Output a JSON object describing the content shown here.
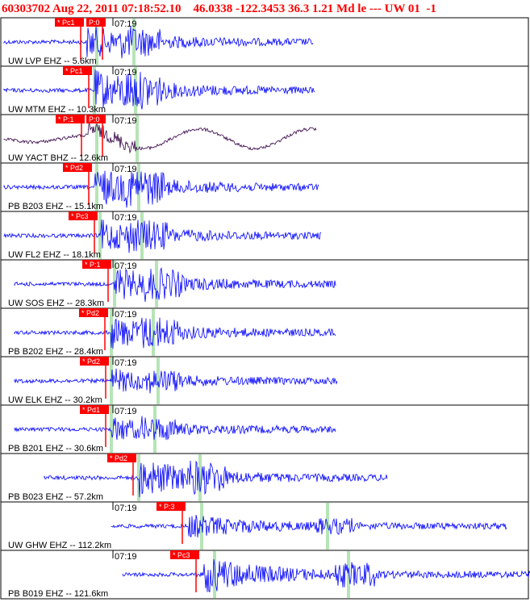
{
  "header": {
    "event_id": "60303702",
    "datetime": "Aug 22, 2011 07:18:52.10",
    "latitude": "46.0338",
    "longitude": "-122.3453",
    "depth": "36.3",
    "magnitude": "1.21",
    "mag_type": "Md",
    "type": "le",
    "separator": "---",
    "network": "UW",
    "version": "01",
    "flag": "-1"
  },
  "colors": {
    "waveform": "#0000ff",
    "broadband_waveform": "#330044",
    "pick": "#ff0000",
    "marker": "#b6e4b6",
    "panel_border": "#000000",
    "header_text": "#ff0000"
  },
  "chart_data": {
    "type": "line",
    "time_label": "07:19",
    "channels": [
      {
        "label": "UW LVP EHZ -- 5.6km",
        "picks": [
          "* Pc1",
          "P:0"
        ],
        "time_label": "07:19",
        "amplitude": "medium",
        "color": "#0000ff"
      },
      {
        "label": "UW MTM EHZ -- 10.3km",
        "picks": [
          "* Pc1"
        ],
        "time_label": "07:19",
        "amplitude": "high",
        "color": "#0000ff"
      },
      {
        "label": "UW YACT BHZ -- 12.6km",
        "picks": [
          "* P:1",
          "P:0"
        ],
        "time_label": "07:19",
        "amplitude": "low",
        "color": "#330044"
      },
      {
        "label": "PB B203 EHZ -- 15.1km",
        "picks": [
          "* Pd2"
        ],
        "time_label": "07:19",
        "amplitude": "high",
        "color": "#0000ff"
      },
      {
        "label": "UW FL2 EHZ -- 18.1km",
        "picks": [
          "* Pc3"
        ],
        "time_label": "07:19",
        "amplitude": "medium",
        "color": "#0000ff"
      },
      {
        "label": "UW SOS EHZ -- 28.3km",
        "picks": [
          "* P:1"
        ],
        "time_label": "07:19",
        "amplitude": "medium",
        "color": "#0000ff"
      },
      {
        "label": "PB B202 EHZ -- 28.4km",
        "picks": [
          "* Pd2"
        ],
        "time_label": "07:19",
        "amplitude": "medium",
        "color": "#0000ff"
      },
      {
        "label": "UW ELK EHZ -- 30.2km",
        "picks": [
          "* Pd2"
        ],
        "time_label": "07:19",
        "amplitude": "low",
        "color": "#0000ff"
      },
      {
        "label": "PB B201 EHZ -- 30.6km",
        "picks": [
          "* Pd1"
        ],
        "time_label": "07:19",
        "amplitude": "low",
        "color": "#0000ff"
      },
      {
        "label": "PB B023 EHZ -- 57.2km",
        "picks": [
          "* Pd2"
        ],
        "time_label": "",
        "amplitude": "high",
        "color": "#0000ff"
      },
      {
        "label": "UW GHW EHZ -- 112.2km",
        "picks": [
          "* P:3"
        ],
        "time_label": "07:19",
        "amplitude": "low",
        "color": "#0000ff"
      },
      {
        "label": "PB B019 EHZ -- 121.6km",
        "picks": [
          "* Pc3"
        ],
        "time_label": "07:19",
        "amplitude": "high",
        "color": "#0000ff"
      }
    ]
  }
}
